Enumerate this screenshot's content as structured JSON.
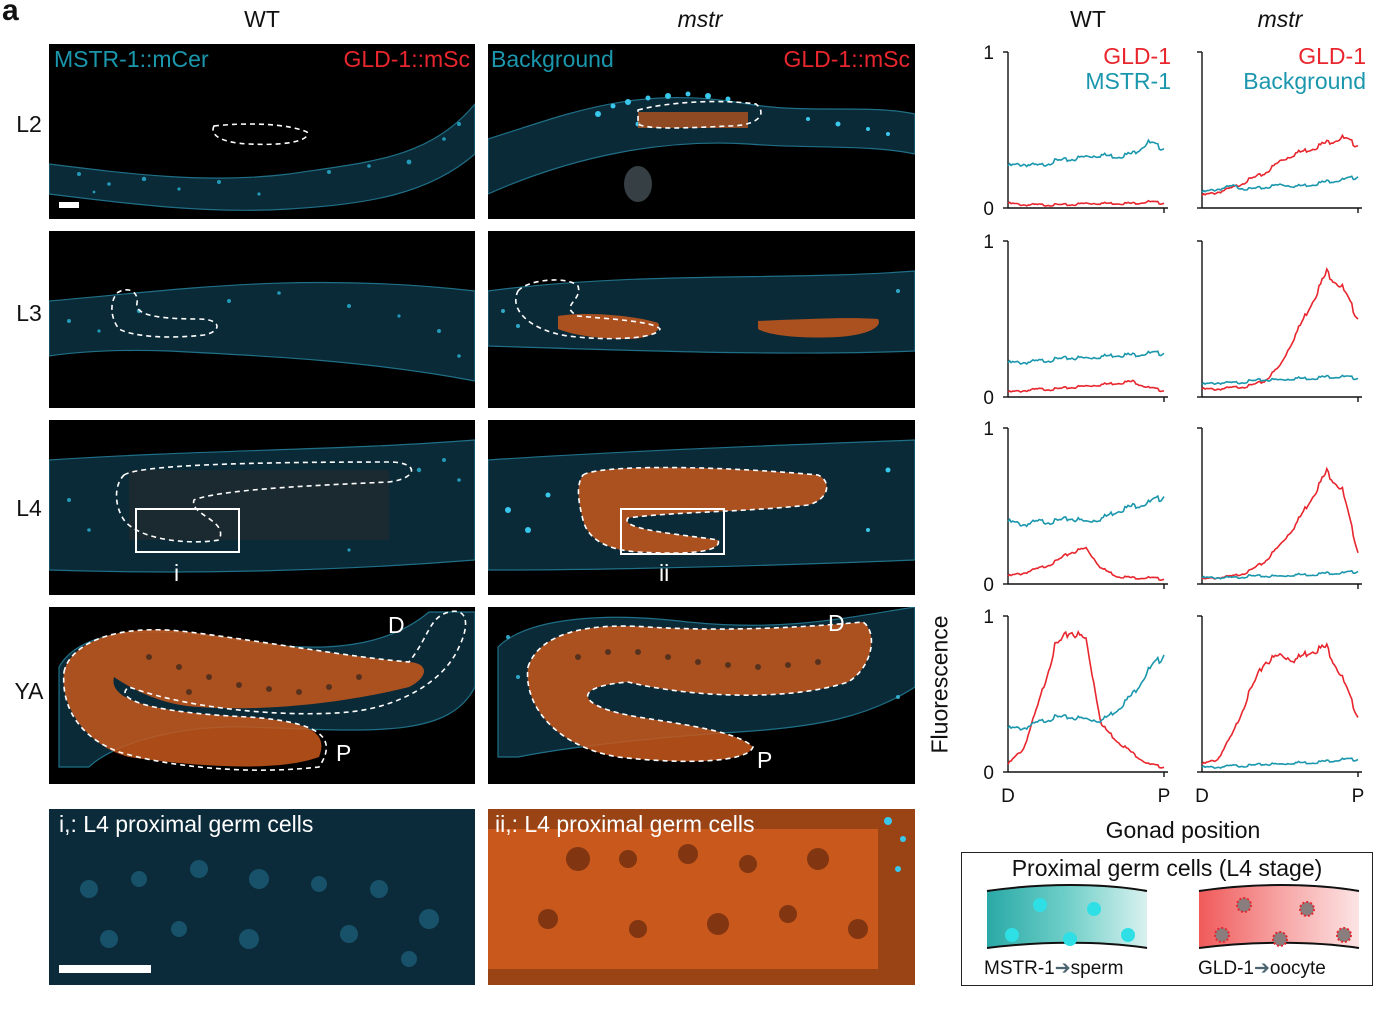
{
  "figure": {
    "panel_letter": "a",
    "columns": {
      "wt": "WT",
      "mstr": "mstr"
    },
    "plot_columns": {
      "wt": "WT",
      "mstr": "mstr"
    },
    "rows": [
      "L2",
      "L3",
      "L4",
      "YA"
    ]
  },
  "micrographs": {
    "wt_channel_label": "MSTR-1::mCer",
    "wt_red_label": "GLD-1::mSc",
    "mstr_channel_label": "Background",
    "mstr_red_label": "GLD-1::mSc",
    "inset_i": "i",
    "inset_ii": "ii",
    "marker_d": "D",
    "marker_p": "P",
    "zoom_wt_title": "i,: L4 proximal germ cells",
    "zoom_mstr_title": "ii,: L4 proximal germ cells"
  },
  "legend": {
    "wt_red": "GLD-1",
    "wt_cyan": "MSTR-1",
    "mstr_red": "GLD-1",
    "mstr_cyan": "Background"
  },
  "colors": {
    "red": "#e8262e",
    "cyan": "#1b97ad",
    "orange": "#c8581c",
    "micro_bg": "#000000"
  },
  "chart_data": {
    "type": "line",
    "ylabel": "Fluorescence",
    "xlabel": "Gonad position",
    "x_ticks": [
      "D",
      "P"
    ],
    "y_ticks": [
      0,
      1
    ],
    "ylim": [
      0,
      1
    ],
    "x": [
      0,
      0.1,
      0.2,
      0.3,
      0.4,
      0.5,
      0.6,
      0.7,
      0.8,
      0.9,
      1.0
    ],
    "panels": [
      {
        "row": "L2",
        "genotype": "WT",
        "series": [
          {
            "name": "GLD-1",
            "color": "#e8262e",
            "values": [
              0.03,
              0.02,
              0.02,
              0.02,
              0.02,
              0.03,
              0.03,
              0.03,
              0.03,
              0.04,
              0.03
            ]
          },
          {
            "name": "MSTR-1",
            "color": "#1b97ad",
            "values": [
              0.27,
              0.28,
              0.27,
              0.3,
              0.31,
              0.33,
              0.34,
              0.33,
              0.35,
              0.42,
              0.38
            ]
          }
        ]
      },
      {
        "row": "L2",
        "genotype": "mstr",
        "series": [
          {
            "name": "GLD-1",
            "color": "#e8262e",
            "values": [
              0.08,
              0.1,
              0.13,
              0.18,
              0.22,
              0.3,
              0.35,
              0.38,
              0.42,
              0.45,
              0.4
            ]
          },
          {
            "name": "Background",
            "color": "#1b97ad",
            "values": [
              0.1,
              0.12,
              0.14,
              0.12,
              0.13,
              0.15,
              0.14,
              0.15,
              0.17,
              0.18,
              0.2
            ]
          }
        ]
      },
      {
        "row": "L3",
        "genotype": "WT",
        "series": [
          {
            "name": "GLD-1",
            "color": "#e8262e",
            "values": [
              0.03,
              0.04,
              0.05,
              0.05,
              0.06,
              0.07,
              0.08,
              0.09,
              0.1,
              0.06,
              0.04
            ]
          },
          {
            "name": "MSTR-1",
            "color": "#1b97ad",
            "values": [
              0.22,
              0.22,
              0.23,
              0.24,
              0.25,
              0.25,
              0.26,
              0.27,
              0.27,
              0.28,
              0.28
            ]
          }
        ]
      },
      {
        "row": "L3",
        "genotype": "mstr",
        "series": [
          {
            "name": "GLD-1",
            "color": "#e8262e",
            "values": [
              0.05,
              0.05,
              0.06,
              0.07,
              0.1,
              0.2,
              0.4,
              0.6,
              0.8,
              0.7,
              0.5
            ]
          },
          {
            "name": "Background",
            "color": "#1b97ad",
            "values": [
              0.08,
              0.09,
              0.09,
              0.1,
              0.11,
              0.11,
              0.12,
              0.12,
              0.13,
              0.13,
              0.12
            ]
          }
        ]
      },
      {
        "row": "L4",
        "genotype": "WT",
        "series": [
          {
            "name": "GLD-1",
            "color": "#e8262e",
            "values": [
              0.05,
              0.07,
              0.1,
              0.14,
              0.2,
              0.23,
              0.1,
              0.05,
              0.04,
              0.04,
              0.03
            ]
          },
          {
            "name": "MSTR-1",
            "color": "#1b97ad",
            "values": [
              0.4,
              0.38,
              0.4,
              0.4,
              0.42,
              0.4,
              0.42,
              0.47,
              0.5,
              0.52,
              0.56
            ]
          }
        ]
      },
      {
        "row": "L4",
        "genotype": "mstr",
        "series": [
          {
            "name": "GLD-1",
            "color": "#e8262e",
            "values": [
              0.03,
              0.04,
              0.05,
              0.08,
              0.14,
              0.25,
              0.38,
              0.55,
              0.72,
              0.6,
              0.2
            ]
          },
          {
            "name": "Background",
            "color": "#1b97ad",
            "values": [
              0.04,
              0.04,
              0.04,
              0.05,
              0.05,
              0.05,
              0.06,
              0.06,
              0.07,
              0.07,
              0.08
            ]
          }
        ]
      },
      {
        "row": "YA",
        "genotype": "WT",
        "series": [
          {
            "name": "GLD-1",
            "color": "#e8262e",
            "values": [
              0.05,
              0.15,
              0.45,
              0.8,
              0.9,
              0.85,
              0.3,
              0.2,
              0.12,
              0.05,
              0.03
            ]
          },
          {
            "name": "MSTR-1",
            "color": "#1b97ad",
            "values": [
              0.28,
              0.28,
              0.32,
              0.35,
              0.35,
              0.34,
              0.33,
              0.4,
              0.5,
              0.65,
              0.75
            ]
          }
        ]
      },
      {
        "row": "YA",
        "genotype": "mstr",
        "series": [
          {
            "name": "GLD-1",
            "color": "#e8262e",
            "values": [
              0.05,
              0.08,
              0.25,
              0.5,
              0.7,
              0.75,
              0.72,
              0.78,
              0.8,
              0.6,
              0.35
            ]
          },
          {
            "name": "Background",
            "color": "#1b97ad",
            "values": [
              0.03,
              0.03,
              0.04,
              0.04,
              0.05,
              0.05,
              0.06,
              0.06,
              0.07,
              0.08,
              0.08
            ]
          }
        ]
      }
    ]
  },
  "schematic": {
    "title": "Proximal germ cells (L4 stage)",
    "left_caption_a": "MSTR-1",
    "left_caption_b": "sperm",
    "right_caption_a": "GLD-1",
    "right_caption_b": "oocyte"
  }
}
